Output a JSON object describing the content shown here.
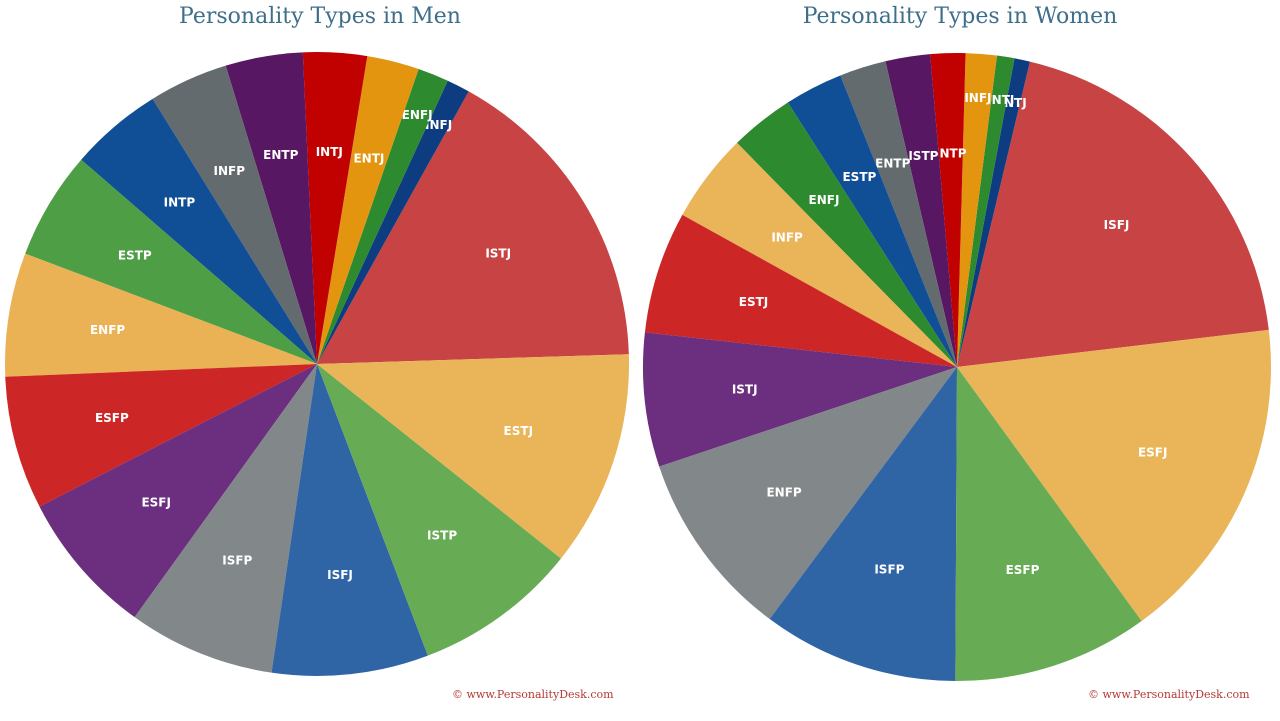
{
  "chart_data": [
    {
      "type": "pie",
      "title": "Personality Types in Men",
      "credit": "© www.PersonalityDesk.com",
      "slices": [
        {
          "label": "ISTJ",
          "value": 16.4,
          "color": "#c84343"
        },
        {
          "label": "INFJ",
          "value": 1.2,
          "color": "#0d3d80"
        },
        {
          "label": "ENFJ",
          "value": 1.6,
          "color": "#2e8a2e"
        },
        {
          "label": "ENTJ",
          "value": 2.7,
          "color": "#e4950f"
        },
        {
          "label": "INTJ",
          "value": 3.3,
          "color": "#c10000"
        },
        {
          "label": "ENTP",
          "value": 4.0,
          "color": "#571762"
        },
        {
          "label": "INFP",
          "value": 4.1,
          "color": "#646b6e"
        },
        {
          "label": "INTP",
          "value": 4.8,
          "color": "#104e95"
        },
        {
          "label": "ESTP",
          "value": 5.6,
          "color": "#4d9e44"
        },
        {
          "label": "ENFP",
          "value": 6.4,
          "color": "#eab254"
        },
        {
          "label": "ESFP",
          "value": 6.9,
          "color": "#cc2626"
        },
        {
          "label": "ESFJ",
          "value": 7.5,
          "color": "#6c2e7e"
        },
        {
          "label": "ISFP",
          "value": 7.6,
          "color": "#828789"
        },
        {
          "label": "ISFJ",
          "value": 8.1,
          "color": "#2f64a5"
        },
        {
          "label": "ISTP",
          "value": 8.5,
          "color": "#68ab55"
        },
        {
          "label": "ESTJ",
          "value": 11.2,
          "color": "#e9b558"
        }
      ]
    },
    {
      "type": "pie",
      "title": "Personality Types in Women",
      "credit": "© www.PersonalityDesk.com",
      "slices": [
        {
          "label": "ISFJ",
          "value": 19.4,
          "color": "#c84343"
        },
        {
          "label": "INTJ",
          "value": 0.8,
          "color": "#0d3d80"
        },
        {
          "label": "ENTJ",
          "value": 0.9,
          "color": "#2e8a2e"
        },
        {
          "label": "INFJ",
          "value": 1.6,
          "color": "#e4950f"
        },
        {
          "label": "INTP",
          "value": 1.8,
          "color": "#c10000"
        },
        {
          "label": "ISTP",
          "value": 2.3,
          "color": "#571762"
        },
        {
          "label": "ENTP",
          "value": 2.4,
          "color": "#646b6e"
        },
        {
          "label": "ESTP",
          "value": 3.0,
          "color": "#104e95"
        },
        {
          "label": "ENFJ",
          "value": 3.3,
          "color": "#2e8a2e"
        },
        {
          "label": "INFP",
          "value": 4.6,
          "color": "#e9b558"
        },
        {
          "label": "ESTJ",
          "value": 6.3,
          "color": "#cc2626"
        },
        {
          "label": "ISTJ",
          "value": 6.9,
          "color": "#6c2e7e"
        },
        {
          "label": "ENFP",
          "value": 9.7,
          "color": "#828789"
        },
        {
          "label": "ISFP",
          "value": 10.1,
          "color": "#2f64a5"
        },
        {
          "label": "ESFP",
          "value": 10.1,
          "color": "#68ab55"
        },
        {
          "label": "ESFJ",
          "value": 16.9,
          "color": "#e9b558"
        }
      ]
    }
  ]
}
